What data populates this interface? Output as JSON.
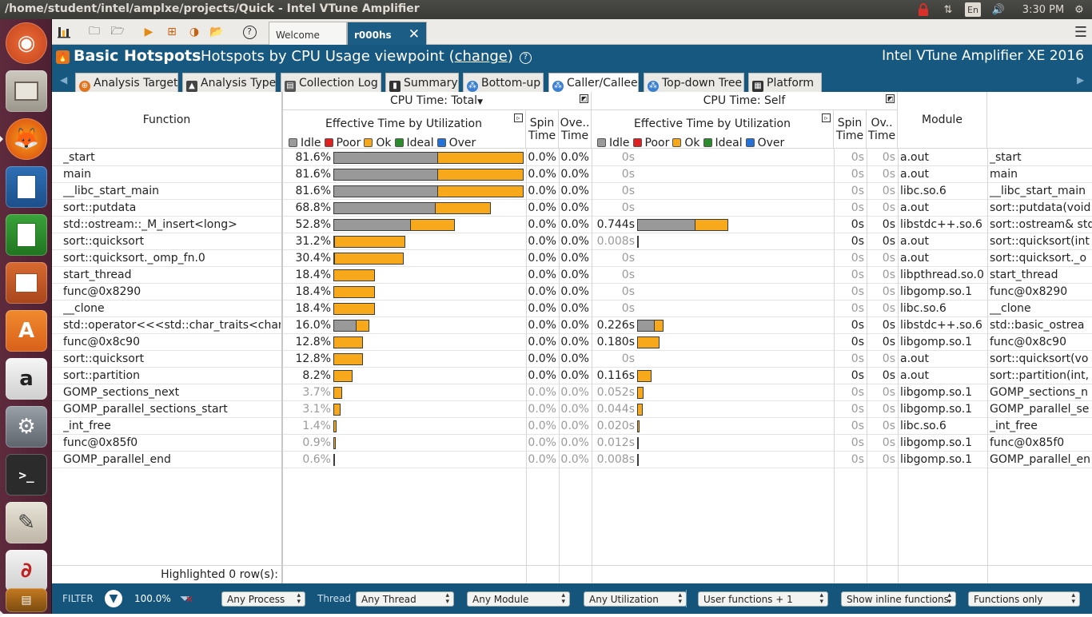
{
  "window_title": "/home/student/intel/amplxe/projects/Quick - Intel VTune Amplifier",
  "system": {
    "keyboard": "En",
    "time": "3:30 PM"
  },
  "launcher": [
    "ubuntu-dash",
    "files",
    "firefox",
    "libreoffice-writer",
    "libreoffice-calc",
    "libreoffice-impress",
    "software-center",
    "amazon",
    "system-settings",
    "terminal",
    "text-editor",
    "document-viewer",
    "vtune"
  ],
  "toolbar": {
    "tabs": [
      "Welcome",
      "r000hs"
    ]
  },
  "header": {
    "analysis": "Basic Hotspots",
    "viewpoint_pre": "Hotspots by CPU Usage viewpoint (",
    "viewpoint_link": "change",
    "viewpoint_post": ")",
    "product": "Intel VTune Amplifier XE 2016"
  },
  "view_tabs": [
    "Analysis Target",
    "Analysis Type",
    "Collection Log",
    "Summary",
    "Bottom-up",
    "Caller/Callee",
    "Top-down Tree",
    "Platform"
  ],
  "grid": {
    "col_function": "Function",
    "group_total": "CPU Time: Total",
    "group_self": "CPU Time: Self",
    "eff_time": "Effective Time by Utilization",
    "spin": "Spin Time",
    "over_total": "Ove.. Time",
    "over_self": "Ov.. Time",
    "module": "Module",
    "legend": [
      "Idle",
      "Poor",
      "Ok",
      "Ideal",
      "Over"
    ],
    "legend_colors": [
      "#9a9a9a",
      "#e02020",
      "#f7a91b",
      "#2a8c2a",
      "#2472d8"
    ],
    "highlighted": "Highlighted 0 row(s):"
  },
  "rows": [
    {
      "fn": "_start",
      "total": "81.6%",
      "total_idle": 0.55,
      "total_ok": 0.45,
      "spin": "0.0%",
      "over": "0.0%",
      "self": "0s",
      "self_idle": 0,
      "self_ok": 0,
      "sspin": "0s",
      "sover": "0s",
      "module": "a.out",
      "full": "_start",
      "dim": false
    },
    {
      "fn": "main",
      "total": "81.6%",
      "total_idle": 0.55,
      "total_ok": 0.45,
      "spin": "0.0%",
      "over": "0.0%",
      "self": "0s",
      "self_idle": 0,
      "self_ok": 0,
      "sspin": "0s",
      "sover": "0s",
      "module": "a.out",
      "full": "main",
      "dim": false
    },
    {
      "fn": "__libc_start_main",
      "total": "81.6%",
      "total_idle": 0.55,
      "total_ok": 0.45,
      "spin": "0.0%",
      "over": "0.0%",
      "self": "0s",
      "self_idle": 0,
      "self_ok": 0,
      "sspin": "0s",
      "sover": "0s",
      "module": "libc.so.6",
      "full": "__libc_start_main",
      "dim": false
    },
    {
      "fn": "sort::putdata",
      "total": "68.8%",
      "total_idle": 0.539,
      "total_ok": 0.29,
      "spin": "0.0%",
      "over": "0.0%",
      "self": "0s",
      "self_idle": 0,
      "self_ok": 0,
      "sspin": "0s",
      "sover": "0s",
      "module": "a.out",
      "full": "sort::putdata(void",
      "dim": false
    },
    {
      "fn": "std::ostream::_M_insert<long>",
      "total": "52.8%",
      "total_idle": 0.41,
      "total_ok": 0.23,
      "spin": "0.0%",
      "over": "0.0%",
      "self": "0.744s",
      "self_idle": 0.31,
      "self_ok": 0.175,
      "sspin": "0s",
      "sover": "0s",
      "module": "libstdc++.so.6",
      "full": "sort::ostream& std",
      "dim": false
    },
    {
      "fn": "sort::quicksort",
      "total": "31.2%",
      "total_idle": 0.005,
      "total_ok": 0.375,
      "spin": "0.0%",
      "over": "0.0%",
      "self": "0.008s",
      "self_idle": 0.005,
      "self_ok": 0,
      "sspin": "0s",
      "sover": "0s",
      "module": "a.out",
      "full": "sort::quicksort(int",
      "dim": false,
      "self_dim": true
    },
    {
      "fn": "sort::quicksort._omp_fn.0",
      "total": "30.4%",
      "total_idle": 0.005,
      "total_ok": 0.365,
      "spin": "0.0%",
      "over": "0.0%",
      "self": "0s",
      "self_idle": 0,
      "self_ok": 0,
      "sspin": "0s",
      "sover": "0s",
      "module": "a.out",
      "full": "sort::quicksort._o",
      "dim": false
    },
    {
      "fn": "start_thread",
      "total": "18.4%",
      "total_idle": 0,
      "total_ok": 0.22,
      "spin": "0.0%",
      "over": "0.0%",
      "self": "0s",
      "self_idle": 0,
      "self_ok": 0,
      "sspin": "0s",
      "sover": "0s",
      "module": "libpthread.so.0",
      "full": "start_thread",
      "dim": false
    },
    {
      "fn": "func@0x8290",
      "total": "18.4%",
      "total_idle": 0,
      "total_ok": 0.22,
      "spin": "0.0%",
      "over": "0.0%",
      "self": "0s",
      "self_idle": 0,
      "self_ok": 0,
      "sspin": "0s",
      "sover": "0s",
      "module": "libgomp.so.1",
      "full": "func@0x8290",
      "dim": false
    },
    {
      "fn": "__clone",
      "total": "18.4%",
      "total_idle": 0,
      "total_ok": 0.22,
      "spin": "0.0%",
      "over": "0.0%",
      "self": "0s",
      "self_idle": 0,
      "self_ok": 0,
      "sspin": "0s",
      "sover": "0s",
      "module": "libc.so.6",
      "full": "__clone",
      "dim": false
    },
    {
      "fn": "std::operator<<<std::char_traits<char>>",
      "total": "16.0%",
      "total_idle": 0.125,
      "total_ok": 0.065,
      "spin": "0.0%",
      "over": "0.0%",
      "self": "0.226s",
      "self_idle": 0.095,
      "self_ok": 0.045,
      "sspin": "0s",
      "sover": "0s",
      "module": "libstdc++.so.6",
      "full": "std::basic_ostrea",
      "dim": false
    },
    {
      "fn": "func@0x8c90",
      "total": "12.8%",
      "total_idle": 0,
      "total_ok": 0.155,
      "spin": "0.0%",
      "over": "0.0%",
      "self": "0.180s",
      "self_idle": 0,
      "self_ok": 0.12,
      "sspin": "0s",
      "sover": "0s",
      "module": "libgomp.so.1",
      "full": "func@0x8c90",
      "dim": false
    },
    {
      "fn": "sort::quicksort",
      "total": "12.8%",
      "total_idle": 0,
      "total_ok": 0.155,
      "spin": "0.0%",
      "over": "0.0%",
      "self": "0s",
      "self_idle": 0,
      "self_ok": 0,
      "sspin": "0s",
      "sover": "0s",
      "module": "a.out",
      "full": "sort::quicksort(vo",
      "dim": false
    },
    {
      "fn": "sort::partition",
      "total": "8.2%",
      "total_idle": 0,
      "total_ok": 0.1,
      "spin": "0.0%",
      "over": "0.0%",
      "self": "0.116s",
      "self_idle": 0,
      "self_ok": 0.078,
      "sspin": "0s",
      "sover": "0s",
      "module": "a.out",
      "full": "sort::partition(int,",
      "dim": false
    },
    {
      "fn": "GOMP_sections_next",
      "total": "3.7%",
      "total_idle": 0,
      "total_ok": 0.045,
      "spin": "0.0%",
      "over": "0.0%",
      "self": "0.052s",
      "self_idle": 0,
      "self_ok": 0.035,
      "sspin": "0s",
      "sover": "0s",
      "module": "libgomp.so.1",
      "full": "GOMP_sections_n",
      "dim": true
    },
    {
      "fn": "GOMP_parallel_sections_start",
      "total": "3.1%",
      "total_idle": 0,
      "total_ok": 0.038,
      "spin": "0.0%",
      "over": "0.0%",
      "self": "0.044s",
      "self_idle": 0,
      "self_ok": 0.03,
      "sspin": "0s",
      "sover": "0s",
      "module": "libgomp.so.1",
      "full": "GOMP_parallel_se",
      "dim": true
    },
    {
      "fn": "_int_free",
      "total": "1.4%",
      "total_idle": 0,
      "total_ok": 0.017,
      "spin": "0.0%",
      "over": "0.0%",
      "self": "0.020s",
      "self_idle": 0,
      "self_ok": 0.014,
      "sspin": "0s",
      "sover": "0s",
      "module": "libc.so.6",
      "full": "_int_free",
      "dim": true
    },
    {
      "fn": "func@0x85f0",
      "total": "0.9%",
      "total_idle": 0,
      "total_ok": 0.011,
      "spin": "0.0%",
      "over": "0.0%",
      "self": "0.012s",
      "self_idle": 0,
      "self_ok": 0.009,
      "sspin": "0s",
      "sover": "0s",
      "module": "libgomp.so.1",
      "full": "func@0x85f0",
      "dim": true
    },
    {
      "fn": "GOMP_parallel_end",
      "total": "0.6%",
      "total_idle": 0,
      "total_ok": 0.006,
      "spin": "0.0%",
      "over": "0.0%",
      "self": "0.008s",
      "self_idle": 0,
      "self_ok": 0.005,
      "sspin": "0s",
      "sover": "0s",
      "module": "libgomp.so.1",
      "full": "GOMP_parallel_en",
      "dim": true
    }
  ],
  "filter": {
    "label": "FILTER",
    "percent": "100.0%",
    "process": "Any Process",
    "thread_label": "Thread",
    "thread": "Any Thread",
    "module": "Any Module",
    "utilization": "Any Utilization",
    "functions": "User functions + 1",
    "inline": "Show inline functions",
    "mode": "Functions only"
  }
}
